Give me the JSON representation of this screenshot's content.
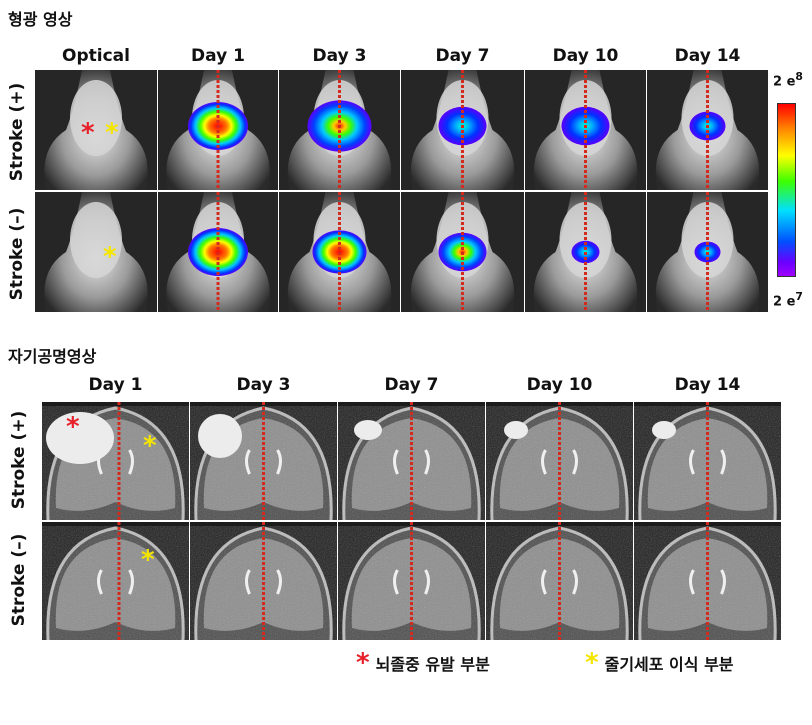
{
  "fluorescence": {
    "title": "형광 영상",
    "columns": [
      "Optical",
      "Day 1",
      "Day 3",
      "Day 7",
      "Day 10",
      "Day 14"
    ],
    "rows": [
      "Stroke (+)",
      "Stroke (–)"
    ],
    "scale_max": "2 e",
    "scale_max_exp": "8",
    "scale_min": "2 e",
    "scale_min_exp": "7"
  },
  "mri": {
    "title": "자기공명영상",
    "columns": [
      "Day 1",
      "Day 3",
      "Day 7",
      "Day 10",
      "Day 14"
    ],
    "rows": [
      "Stroke (+)",
      "Stroke (–)"
    ]
  },
  "markers": {
    "red_star": "*",
    "yellow_star": "*"
  },
  "legend": {
    "red_label": "뇌졸중 유발 부분",
    "yellow_label": "줄기세포 이식 부분"
  },
  "colors": {
    "stroke_marker": "#e8202a",
    "stem_cell_marker": "#f5e600",
    "midline": "#d42a1e"
  }
}
